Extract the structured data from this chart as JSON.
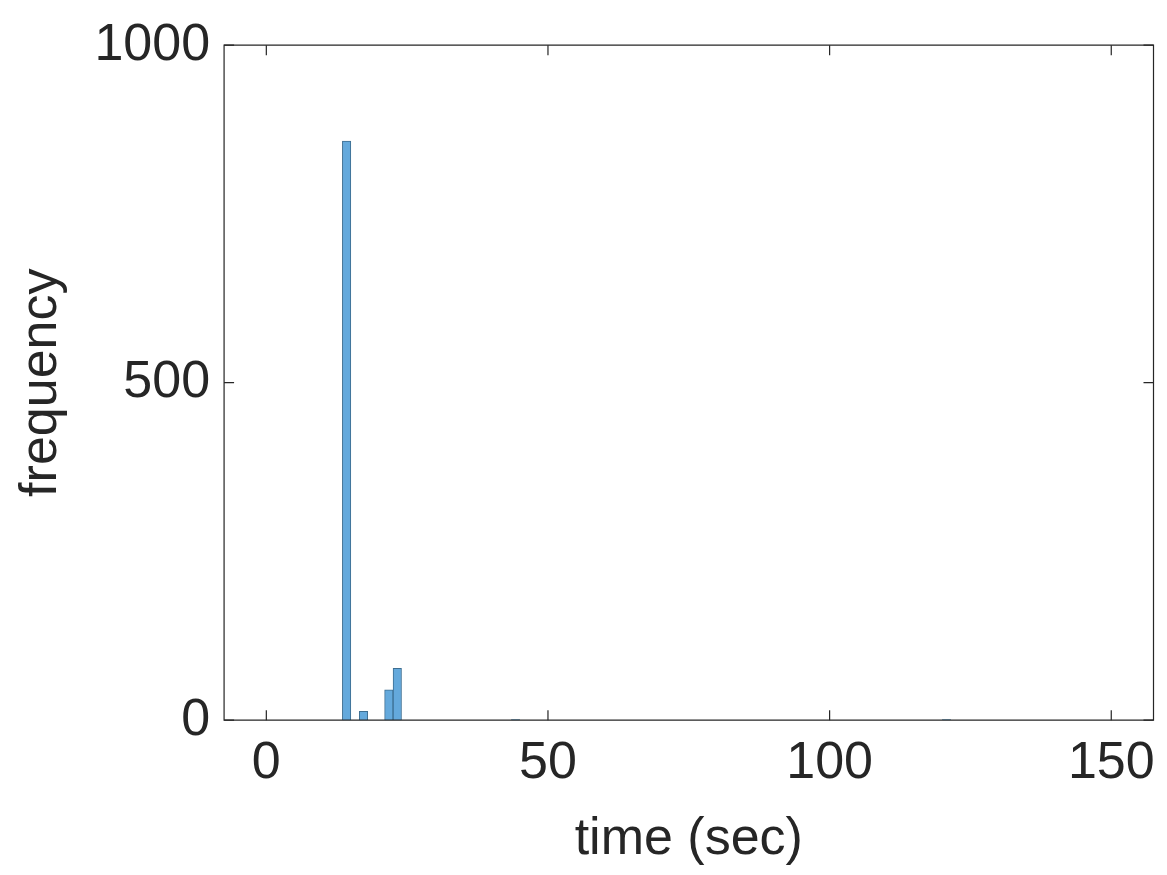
{
  "chart_data": {
    "type": "histogram",
    "xlabel": "time (sec)",
    "ylabel": "frequency",
    "bins": [
      0,
      1.5,
      3,
      4.5,
      6,
      7.5,
      9,
      10.5,
      12,
      13.5,
      15,
      16.5,
      18,
      19.5,
      21,
      22.5,
      24,
      25.5,
      27,
      28.5,
      30,
      31.5,
      33,
      34.5,
      36,
      37.5,
      39,
      40.5,
      42,
      43.5,
      45,
      46.5,
      48,
      49.5,
      51,
      52.5,
      54,
      55.5,
      57,
      58.5,
      60,
      61.5,
      63,
      64.5,
      66,
      67.5,
      69,
      70.5,
      72,
      73.5,
      75,
      76.5,
      78,
      79.5,
      81,
      82.5,
      84,
      85.5,
      87,
      88.5,
      90,
      91.5,
      93,
      94.5,
      96,
      97.5,
      99,
      100.5,
      102,
      103.5,
      105,
      106.5,
      108,
      109.5,
      111,
      112.5,
      114,
      115.5,
      117,
      118.5,
      120,
      121.5,
      123,
      124.5,
      126,
      127.5,
      129,
      130.5,
      132,
      133.5,
      135,
      136.5,
      138,
      139.5,
      141,
      142.5,
      144,
      145.5,
      147,
      148.5,
      150
    ],
    "values": [
      0,
      0,
      0,
      0,
      0,
      0,
      0,
      0,
      0,
      858,
      0,
      13,
      0,
      0,
      45,
      77,
      0,
      0,
      0,
      0,
      0,
      0,
      0,
      0,
      0,
      0,
      0,
      0,
      0,
      1,
      0,
      0,
      0,
      0,
      0,
      0,
      0,
      0,
      0,
      0,
      0,
      0,
      0,
      0,
      0,
      0,
      0,
      0,
      0,
      0,
      0,
      0,
      0,
      0,
      0,
      0,
      0,
      0,
      0,
      0,
      0,
      0,
      0,
      0,
      0,
      0,
      0,
      0,
      0,
      0,
      0,
      0,
      0,
      0,
      0,
      0,
      0,
      0,
      0,
      0,
      1,
      0,
      0,
      0,
      0,
      0,
      0,
      0,
      0,
      0,
      0,
      0,
      0,
      0,
      0,
      0,
      0,
      0,
      0,
      0
    ],
    "color": "#64a9dc",
    "xlim": [
      -7.5,
      157.5
    ],
    "xticks": [
      0,
      50,
      100,
      150
    ],
    "ylim": [
      0,
      1000
    ],
    "yticks": [
      0,
      500,
      1000
    ],
    "grid": false,
    "legend": false
  }
}
